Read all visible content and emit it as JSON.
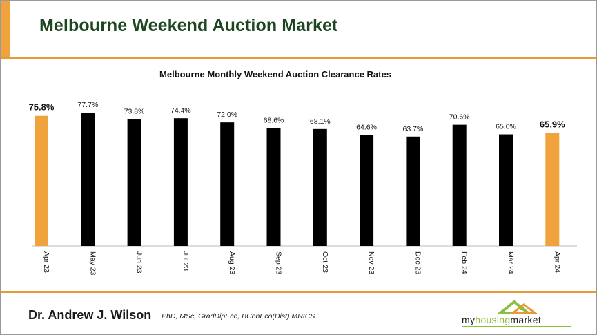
{
  "slide": {
    "title": "Melbourne Weekend Auction Market",
    "footer_name": "Dr. Andrew J. Wilson",
    "footer_credentials": "PhD, MSc, GradDipEco, BConEco(Dist) MRICS",
    "logo": {
      "prefix": "my",
      "middle": "housing",
      "suffix": "market"
    }
  },
  "colors": {
    "accent": "#f0a33c",
    "bar": "#000000",
    "highlight": "#f0a33c",
    "title": "#1e4620",
    "logo_green": "#8bbf3f"
  },
  "chart_data": {
    "type": "bar",
    "title": "Melbourne Monthly Weekend Auction Clearance Rates",
    "categories": [
      "Apr 23",
      "May 23",
      "Jun 23",
      "Jul 23",
      "Aug 23",
      "Sep 23",
      "Oct 23",
      "Nov 23",
      "Dec 23",
      "Feb 24",
      "Mar 24",
      "Apr 24"
    ],
    "values": [
      75.8,
      77.7,
      73.8,
      74.4,
      72.0,
      68.6,
      68.1,
      64.6,
      63.7,
      70.6,
      65.0,
      65.9
    ],
    "labels": [
      "75.8%",
      "77.7%",
      "73.8%",
      "74.4%",
      "72.0%",
      "68.6%",
      "68.1%",
      "64.6%",
      "63.7%",
      "70.6%",
      "65.0%",
      "65.9%"
    ],
    "highlight": [
      true,
      false,
      false,
      false,
      false,
      false,
      false,
      false,
      false,
      false,
      false,
      true
    ],
    "ylim": [
      0,
      80
    ],
    "grid": false,
    "legend": "none"
  }
}
